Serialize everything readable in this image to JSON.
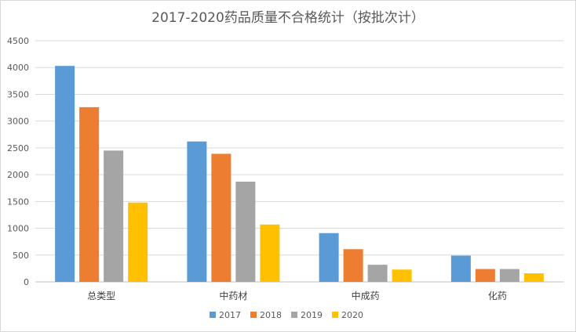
{
  "chart_data": {
    "type": "bar",
    "title": "2017-2020药品质量不合格统计（按批次计）",
    "xlabel": "",
    "ylabel": "",
    "categories": [
      "总类型",
      "中药材",
      "中成药",
      "化药"
    ],
    "series": [
      {
        "name": "2017",
        "color": "#5b9bd5",
        "values": [
          4030,
          2620,
          910,
          490
        ]
      },
      {
        "name": "2018",
        "color": "#ed7d31",
        "values": [
          3260,
          2390,
          610,
          240
        ]
      },
      {
        "name": "2019",
        "color": "#a5a5a5",
        "values": [
          2450,
          1870,
          320,
          240
        ]
      },
      {
        "name": "2020",
        "color": "#ffc000",
        "values": [
          1480,
          1070,
          230,
          160
        ]
      }
    ],
    "ylim": [
      0,
      4500
    ],
    "yticks": [
      "0",
      "500",
      "1000",
      "1500",
      "2000",
      "2500",
      "3000",
      "3500",
      "4000",
      "4500"
    ],
    "grid": true,
    "legend_position": "bottom"
  }
}
